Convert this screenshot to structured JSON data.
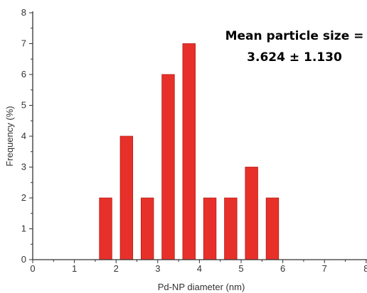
{
  "chart_data": {
    "type": "bar",
    "xlabel": "Pd-NP diameter (nm)",
    "ylabel": "Frequency (%)",
    "xlim": [
      0,
      8
    ],
    "ylim": [
      0,
      8
    ],
    "x_ticks": [
      "0",
      "1",
      "2",
      "3",
      "4",
      "5",
      "6",
      "7",
      "8"
    ],
    "y_ticks": [
      "0",
      "1",
      "2",
      "3",
      "4",
      "5",
      "6",
      "7",
      "8"
    ],
    "bar_width": 0.3,
    "bar_color": "#e8302a",
    "bars": [
      {
        "x": 1.75,
        "value": 2
      },
      {
        "x": 2.25,
        "value": 4
      },
      {
        "x": 2.75,
        "value": 2
      },
      {
        "x": 3.25,
        "value": 6
      },
      {
        "x": 3.75,
        "value": 7
      },
      {
        "x": 4.25,
        "value": 2
      },
      {
        "x": 4.75,
        "value": 2
      },
      {
        "x": 5.25,
        "value": 3
      },
      {
        "x": 5.75,
        "value": 2
      }
    ],
    "annotation": {
      "line1": "Mean particle size =",
      "line2": "3.624 ± 1.130"
    },
    "grid": false,
    "legend": "none"
  }
}
